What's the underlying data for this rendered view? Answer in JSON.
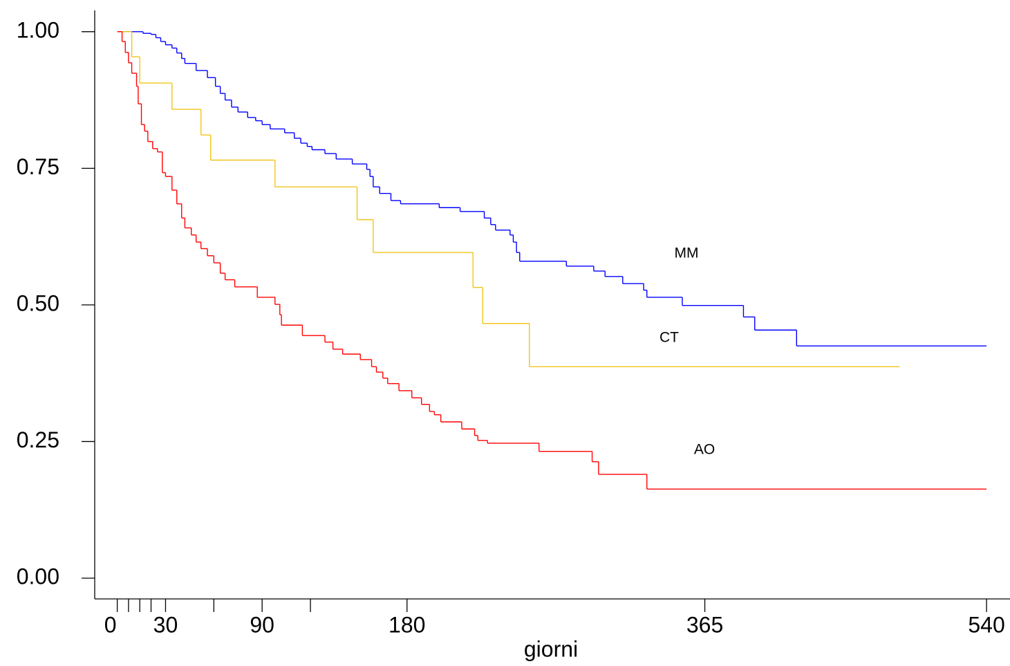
{
  "chart_data": {
    "type": "step",
    "x_label": "giorni",
    "xlim": [
      -14,
      555
    ],
    "ylim": [
      -0.038,
      1.039
    ],
    "xticks": [
      0,
      30,
      90,
      180,
      365,
      540
    ],
    "xminor_ticks": [
      7,
      14,
      21,
      60,
      120
    ],
    "yticks": [
      {
        "value": 0,
        "label": "0.00"
      },
      {
        "value": 0.25,
        "label": "0.25"
      },
      {
        "value": 0.5,
        "label": "0.50"
      },
      {
        "value": 0.75,
        "label": "0.75"
      },
      {
        "value": 1,
        "label": "1.00"
      }
    ],
    "series": [
      {
        "name": "MM",
        "color": "#0000ff",
        "x": [
          0,
          16,
          21,
          24,
          27,
          30,
          34,
          37,
          40,
          42,
          49,
          56,
          61,
          64,
          67,
          71,
          75,
          81,
          86,
          90,
          95,
          104,
          110,
          114,
          118,
          121,
          129,
          136,
          146,
          155,
          157,
          159,
          163,
          170,
          176,
          200,
          213,
          228,
          232,
          235,
          244,
          246,
          248,
          250,
          279,
          296,
          303,
          314,
          327,
          329,
          351,
          389,
          396,
          422,
          540
        ],
        "values": [
          1.0,
          0.997,
          0.995,
          0.989,
          0.982,
          0.976,
          0.97,
          0.961,
          0.951,
          0.942,
          0.929,
          0.916,
          0.9,
          0.887,
          0.875,
          0.862,
          0.853,
          0.843,
          0.837,
          0.83,
          0.822,
          0.815,
          0.805,
          0.796,
          0.79,
          0.784,
          0.777,
          0.767,
          0.758,
          0.748,
          0.735,
          0.716,
          0.704,
          0.691,
          0.685,
          0.678,
          0.671,
          0.659,
          0.647,
          0.637,
          0.628,
          0.615,
          0.596,
          0.58,
          0.571,
          0.562,
          0.552,
          0.539,
          0.527,
          0.514,
          0.499,
          0.478,
          0.454,
          0.425,
          0.425
        ]
      },
      {
        "name": "CT",
        "color": "#f0c419",
        "x": [
          0,
          9,
          14,
          34,
          52,
          58,
          98,
          149,
          159,
          221,
          227,
          256,
          486
        ],
        "values": [
          1.0,
          0.954,
          0.906,
          0.858,
          0.811,
          0.765,
          0.716,
          0.656,
          0.596,
          0.532,
          0.466,
          0.387,
          0.387
        ]
      },
      {
        "name": "AO",
        "color": "#ff0000",
        "x": [
          0,
          3,
          5,
          7,
          9,
          12,
          13,
          15,
          17,
          19,
          22,
          25,
          28,
          30,
          34,
          37,
          40,
          42,
          46,
          49,
          52,
          56,
          60,
          64,
          67,
          73,
          87,
          98,
          101,
          102,
          115,
          129,
          134,
          140,
          151,
          158,
          161,
          165,
          168,
          175,
          183,
          189,
          194,
          197,
          201,
          214,
          222,
          224,
          230,
          262,
          295,
          299,
          329,
          540
        ],
        "values": [
          1.0,
          0.982,
          0.962,
          0.943,
          0.924,
          0.9,
          0.868,
          0.83,
          0.818,
          0.799,
          0.786,
          0.78,
          0.742,
          0.735,
          0.71,
          0.685,
          0.659,
          0.641,
          0.628,
          0.615,
          0.603,
          0.59,
          0.577,
          0.558,
          0.546,
          0.533,
          0.514,
          0.501,
          0.482,
          0.463,
          0.444,
          0.432,
          0.419,
          0.41,
          0.4,
          0.387,
          0.377,
          0.366,
          0.356,
          0.343,
          0.33,
          0.318,
          0.305,
          0.299,
          0.286,
          0.273,
          0.261,
          0.252,
          0.247,
          0.232,
          0.213,
          0.19,
          0.163,
          0.163
        ]
      }
    ]
  }
}
